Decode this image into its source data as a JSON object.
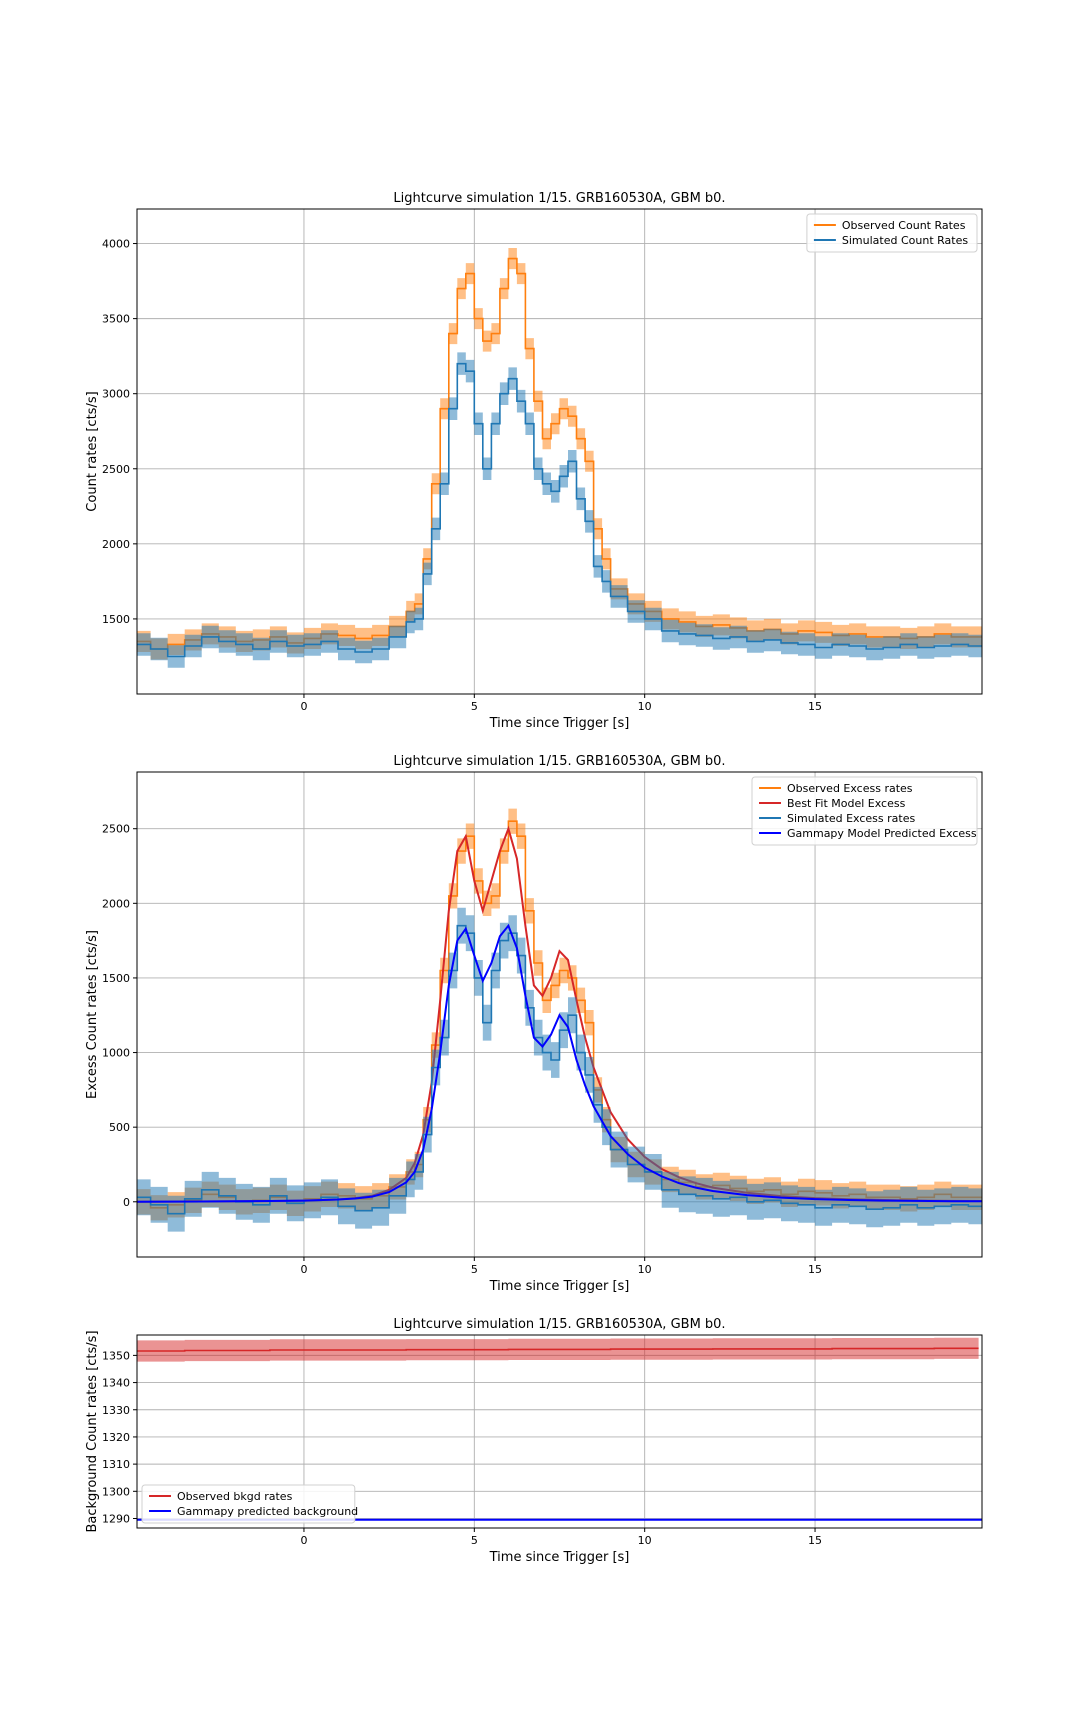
{
  "chart_data": [
    {
      "type": "line",
      "title": "Lightcurve simulation 1/15. GRB160530A, GBM b0.",
      "xlabel": "Time since Trigger [s]",
      "ylabel": "Count rates [cts/s]",
      "xlim": [
        -4.9,
        19.9
      ],
      "ylim": [
        1000,
        4230
      ],
      "xticks": [
        0,
        5,
        10,
        15
      ],
      "yticks": [
        1500,
        2000,
        2500,
        3000,
        3500,
        4000
      ],
      "grid": true,
      "legend_position": "upper right",
      "legend": [
        "Observed Count Rates",
        "Simulated Count Rates"
      ],
      "series": [
        {
          "name": "Observed Count Rates",
          "color": "#ff7f0e",
          "style": "steps-band",
          "x": [
            -4.9,
            -4.5,
            -4,
            -3.5,
            -3,
            -2.5,
            -2,
            -1.5,
            -1,
            -0.5,
            0,
            0.5,
            1,
            1.5,
            2,
            2.5,
            3,
            3.25,
            3.5,
            3.75,
            4,
            4.25,
            4.5,
            4.75,
            5,
            5.25,
            5.5,
            5.75,
            6,
            6.25,
            6.5,
            6.75,
            7,
            7.25,
            7.5,
            7.75,
            8,
            8.25,
            8.5,
            8.75,
            9,
            9.5,
            10,
            10.5,
            11,
            11.5,
            12,
            12.5,
            13,
            13.5,
            14,
            14.5,
            15,
            15.5,
            16,
            16.5,
            17,
            17.5,
            18,
            18.5,
            19,
            19.5,
            19.9
          ],
          "values": [
            1350,
            1300,
            1330,
            1360,
            1400,
            1380,
            1350,
            1360,
            1380,
            1340,
            1370,
            1400,
            1390,
            1370,
            1390,
            1450,
            1550,
            1600,
            1900,
            2400,
            2900,
            3400,
            3700,
            3800,
            3500,
            3350,
            3400,
            3700,
            3900,
            3800,
            3300,
            2950,
            2700,
            2800,
            2900,
            2850,
            2700,
            2550,
            2100,
            1900,
            1700,
            1600,
            1550,
            1500,
            1480,
            1450,
            1460,
            1440,
            1420,
            1430,
            1400,
            1420,
            1410,
            1390,
            1400,
            1380,
            1380,
            1370,
            1380,
            1400,
            1380,
            1380,
            1380
          ],
          "band_half_width": 70
        },
        {
          "name": "Simulated Count Rates",
          "color": "#1f77b4",
          "style": "steps-band",
          "x": [
            -4.9,
            -4.5,
            -4,
            -3.5,
            -3,
            -2.5,
            -2,
            -1.5,
            -1,
            -0.5,
            0,
            0.5,
            1,
            1.5,
            2,
            2.5,
            3,
            3.25,
            3.5,
            3.75,
            4,
            4.25,
            4.5,
            4.75,
            5,
            5.25,
            5.5,
            5.75,
            6,
            6.25,
            6.5,
            6.75,
            7,
            7.25,
            7.5,
            7.75,
            8,
            8.25,
            8.5,
            8.75,
            9,
            9.5,
            10,
            10.5,
            11,
            11.5,
            12,
            12.5,
            13,
            13.5,
            14,
            14.5,
            15,
            15.5,
            16,
            16.5,
            17,
            17.5,
            18,
            18.5,
            19,
            19.5,
            19.9
          ],
          "values": [
            1330,
            1300,
            1250,
            1320,
            1380,
            1350,
            1330,
            1300,
            1350,
            1320,
            1330,
            1350,
            1300,
            1280,
            1300,
            1380,
            1480,
            1500,
            1800,
            2100,
            2400,
            2900,
            3200,
            3150,
            2800,
            2500,
            2800,
            3000,
            3100,
            2950,
            2800,
            2500,
            2400,
            2350,
            2450,
            2550,
            2300,
            2150,
            1850,
            1750,
            1650,
            1550,
            1500,
            1420,
            1400,
            1390,
            1370,
            1380,
            1350,
            1360,
            1340,
            1330,
            1310,
            1330,
            1320,
            1300,
            1310,
            1330,
            1310,
            1320,
            1330,
            1320,
            1320
          ],
          "band_half_width": 75
        }
      ]
    },
    {
      "type": "line",
      "title": "Lightcurve simulation 1/15. GRB160530A, GBM b0.",
      "xlabel": "Time since Trigger [s]",
      "ylabel": "Excess Count rates [cts/s]",
      "xlim": [
        -4.9,
        19.9
      ],
      "ylim": [
        -370,
        2880
      ],
      "xticks": [
        0,
        5,
        10,
        15
      ],
      "yticks": [
        0,
        500,
        1000,
        1500,
        2000,
        2500
      ],
      "grid": true,
      "legend_position": "upper right",
      "legend": [
        "Observed Excess rates",
        "Best Fit Model Excess",
        "Simulated Excess rates",
        "Gammapy Model Predicted Excess"
      ],
      "series": [
        {
          "name": "Observed Excess rates",
          "color": "#ff7f0e",
          "style": "steps-band",
          "x": [
            -4.9,
            -4.5,
            -4,
            -3.5,
            -3,
            -2.5,
            -2,
            -1.5,
            -1,
            -0.5,
            0,
            0.5,
            1,
            1.5,
            2,
            2.5,
            3,
            3.25,
            3.5,
            3.75,
            4,
            4.25,
            4.5,
            4.75,
            5,
            5.25,
            5.5,
            5.75,
            6,
            6.25,
            6.5,
            6.75,
            7,
            7.25,
            7.5,
            7.75,
            8,
            8.25,
            8.5,
            8.75,
            9,
            9.5,
            10,
            10.5,
            11,
            11.5,
            12,
            12.5,
            13,
            13.5,
            14,
            14.5,
            15,
            15.5,
            16,
            16.5,
            17,
            17.5,
            18,
            18.5,
            19,
            19.5,
            19.9
          ],
          "values": [
            0,
            -40,
            -20,
            10,
            50,
            30,
            0,
            10,
            30,
            -10,
            20,
            50,
            40,
            20,
            40,
            100,
            200,
            250,
            550,
            1050,
            1550,
            2050,
            2350,
            2450,
            2150,
            2000,
            2050,
            2350,
            2550,
            2450,
            1950,
            1600,
            1350,
            1450,
            1550,
            1500,
            1350,
            1200,
            750,
            550,
            350,
            250,
            200,
            150,
            130,
            100,
            110,
            90,
            70,
            80,
            50,
            70,
            60,
            40,
            50,
            30,
            30,
            20,
            30,
            50,
            30,
            30,
            30
          ],
          "band_half_width": 85
        },
        {
          "name": "Best Fit Model Excess",
          "color": "#d62728",
          "style": "line",
          "x": [
            -4.9,
            -4,
            -3,
            -2,
            -1,
            0,
            1,
            1.5,
            2,
            2.5,
            3,
            3.25,
            3.5,
            3.75,
            4,
            4.25,
            4.5,
            4.75,
            5,
            5.25,
            5.5,
            5.75,
            6,
            6.25,
            6.5,
            6.75,
            7,
            7.25,
            7.5,
            7.75,
            8,
            8.25,
            8.5,
            8.75,
            9,
            9.5,
            10,
            10.5,
            11,
            11.5,
            12,
            13,
            14,
            15,
            16,
            17,
            18,
            19,
            19.9
          ],
          "values": [
            0,
            1,
            2,
            3,
            5,
            8,
            15,
            25,
            40,
            80,
            160,
            260,
            450,
            800,
            1350,
            1950,
            2350,
            2450,
            2150,
            1950,
            2150,
            2350,
            2500,
            2300,
            1850,
            1450,
            1380,
            1500,
            1680,
            1620,
            1350,
            1100,
            900,
            750,
            600,
            420,
            300,
            220,
            165,
            125,
            95,
            60,
            38,
            25,
            17,
            12,
            8,
            6,
            5
          ]
        },
        {
          "name": "Simulated Excess rates",
          "color": "#1f77b4",
          "style": "steps-band",
          "x": [
            -4.9,
            -4.5,
            -4,
            -3.5,
            -3,
            -2.5,
            -2,
            -1.5,
            -1,
            -0.5,
            0,
            0.5,
            1,
            1.5,
            2,
            2.5,
            3,
            3.25,
            3.5,
            3.75,
            4,
            4.25,
            4.5,
            4.75,
            5,
            5.25,
            5.5,
            5.75,
            6,
            6.25,
            6.5,
            6.75,
            7,
            7.25,
            7.5,
            7.75,
            8,
            8.25,
            8.5,
            8.75,
            9,
            9.5,
            10,
            10.5,
            11,
            11.5,
            12,
            12.5,
            13,
            13.5,
            14,
            14.5,
            15,
            15.5,
            16,
            16.5,
            17,
            17.5,
            18,
            18.5,
            19,
            19.5,
            19.9
          ],
          "values": [
            30,
            -20,
            -80,
            20,
            80,
            40,
            0,
            -20,
            40,
            -10,
            10,
            30,
            -30,
            -60,
            -40,
            40,
            150,
            200,
            450,
            900,
            1100,
            1550,
            1850,
            1800,
            1500,
            1200,
            1550,
            1750,
            1800,
            1650,
            1300,
            1100,
            1000,
            950,
            1150,
            1250,
            1000,
            850,
            650,
            500,
            350,
            250,
            200,
            80,
            50,
            40,
            20,
            30,
            0,
            10,
            -10,
            -20,
            -40,
            -20,
            -30,
            -50,
            -40,
            -20,
            -40,
            -30,
            -20,
            -30,
            -30
          ],
          "band_half_width": 120
        },
        {
          "name": "Gammapy Model Predicted Excess",
          "color": "#0000ff",
          "style": "line",
          "x": [
            -4.9,
            -4,
            -3,
            -2,
            -1,
            0,
            1,
            1.5,
            2,
            2.5,
            3,
            3.25,
            3.5,
            3.75,
            4,
            4.25,
            4.5,
            4.75,
            5,
            5.25,
            5.5,
            5.75,
            6,
            6.25,
            6.5,
            6.75,
            7,
            7.25,
            7.5,
            7.75,
            8,
            8.25,
            8.5,
            8.75,
            9,
            9.5,
            10,
            10.5,
            11,
            11.5,
            12,
            13,
            14,
            15,
            16,
            17,
            18,
            19,
            19.9
          ],
          "values": [
            0,
            1,
            2,
            3,
            5,
            8,
            15,
            22,
            35,
            65,
            130,
            200,
            350,
            620,
            1000,
            1450,
            1750,
            1830,
            1650,
            1480,
            1600,
            1780,
            1850,
            1700,
            1380,
            1100,
            1040,
            1120,
            1250,
            1170,
            950,
            780,
            640,
            540,
            440,
            320,
            230,
            170,
            125,
            95,
            72,
            45,
            28,
            18,
            12,
            8,
            6,
            4,
            3
          ]
        }
      ]
    },
    {
      "type": "line",
      "title": "Lightcurve simulation 1/15. GRB160530A, GBM b0.",
      "xlabel": "Time since Trigger [s]",
      "ylabel": "Background Count rates [cts/s]",
      "xlim": [
        -4.9,
        19.9
      ],
      "ylim": [
        1286.5,
        1357.5
      ],
      "xticks": [
        0,
        5,
        10,
        15
      ],
      "yticks": [
        1290,
        1300,
        1310,
        1320,
        1330,
        1340,
        1350
      ],
      "grid": true,
      "legend_position": "lower left",
      "legend": [
        "Observed bkgd rates",
        "Gammapy predicted background"
      ],
      "series": [
        {
          "name": "Observed bkgd rates",
          "color": "#d62728",
          "style": "steps-band",
          "x": [
            -4.9,
            -3.5,
            -1,
            3,
            6,
            9,
            12,
            15.5,
            18.5,
            19.8
          ],
          "values": [
            1351.6,
            1351.8,
            1352.0,
            1352.1,
            1352.2,
            1352.3,
            1352.4,
            1352.5,
            1352.6,
            1352.6
          ],
          "band_half_width": 3.9
        },
        {
          "name": "Gammapy predicted background",
          "color": "#0000ff",
          "style": "line",
          "x": [
            -4.9,
            19.9
          ],
          "values": [
            1289.5,
            1289.5
          ]
        }
      ]
    }
  ]
}
